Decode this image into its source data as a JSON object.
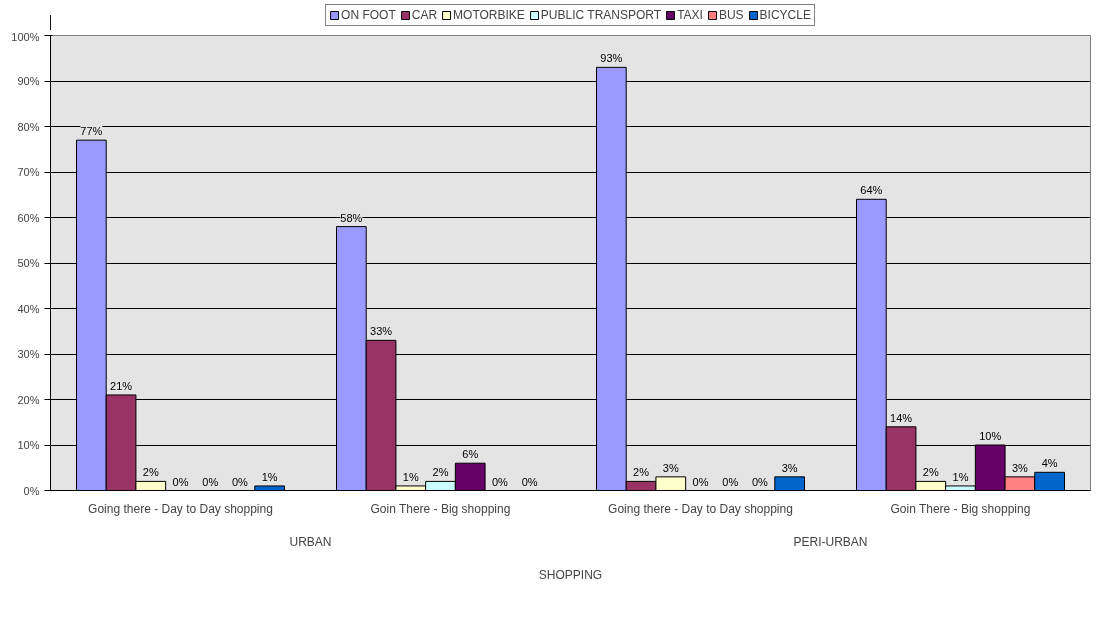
{
  "chart_data": {
    "type": "bar",
    "categories": [
      "Going there - Day to Day shopping",
      "Goin There - Big shopping",
      "Going there - Day to Day shopping",
      "Goin There - Big shopping"
    ],
    "series": [
      {
        "name": "ON FOOT",
        "color": "#9999ff",
        "values": [
          77,
          58,
          93,
          64
        ],
        "value_labels": [
          "77%",
          "58%",
          "93%",
          "64%"
        ]
      },
      {
        "name": "CAR",
        "color": "#993366",
        "values": [
          21,
          33,
          2,
          14
        ],
        "value_labels": [
          "21%",
          "33%",
          "2%",
          "14%"
        ]
      },
      {
        "name": "MOTORBIKE",
        "color": "#ffffcc",
        "values": [
          2,
          1,
          3,
          2
        ],
        "value_labels": [
          "2%",
          "1%",
          "3%",
          "2%"
        ]
      },
      {
        "name": "PUBLIC TRANSPORT",
        "color": "#ccffff",
        "values": [
          0,
          2,
          0,
          1
        ],
        "value_labels": [
          "0%",
          "2%",
          "0%",
          "1%"
        ]
      },
      {
        "name": "TAXI",
        "color": "#660066",
        "values": [
          0,
          6,
          0,
          10
        ],
        "value_labels": [
          "0%",
          "6%",
          "0%",
          "10%"
        ]
      },
      {
        "name": "BUS",
        "color": "#ff8080",
        "values": [
          0,
          0,
          0,
          3
        ],
        "value_labels": [
          "0%",
          "0%",
          "0%",
          "3%"
        ]
      },
      {
        "name": "BICYCLE",
        "color": "#0066cc",
        "values": [
          1,
          0,
          3,
          4
        ],
        "value_labels": [
          "1%",
          "0%",
          "3%",
          "4%"
        ]
      }
    ],
    "annotations": [
      "URBAN",
      "PERI-URBAN",
      "SHOPPING"
    ],
    "ylim": [
      0,
      100
    ],
    "yticks": [
      {
        "value": 0,
        "label": "0%"
      },
      {
        "value": 10,
        "label": "10%"
      },
      {
        "value": 20,
        "label": "20%"
      },
      {
        "value": 30,
        "label": "30%"
      },
      {
        "value": 40,
        "label": "40%"
      },
      {
        "value": 50,
        "label": "50%"
      },
      {
        "value": 60,
        "label": "60%"
      },
      {
        "value": 70,
        "label": "70%"
      },
      {
        "value": 80,
        "label": "80%"
      },
      {
        "value": 90,
        "label": "90%"
      },
      {
        "value": 100,
        "label": "100%"
      }
    ],
    "grid": "y",
    "legend": "top"
  }
}
